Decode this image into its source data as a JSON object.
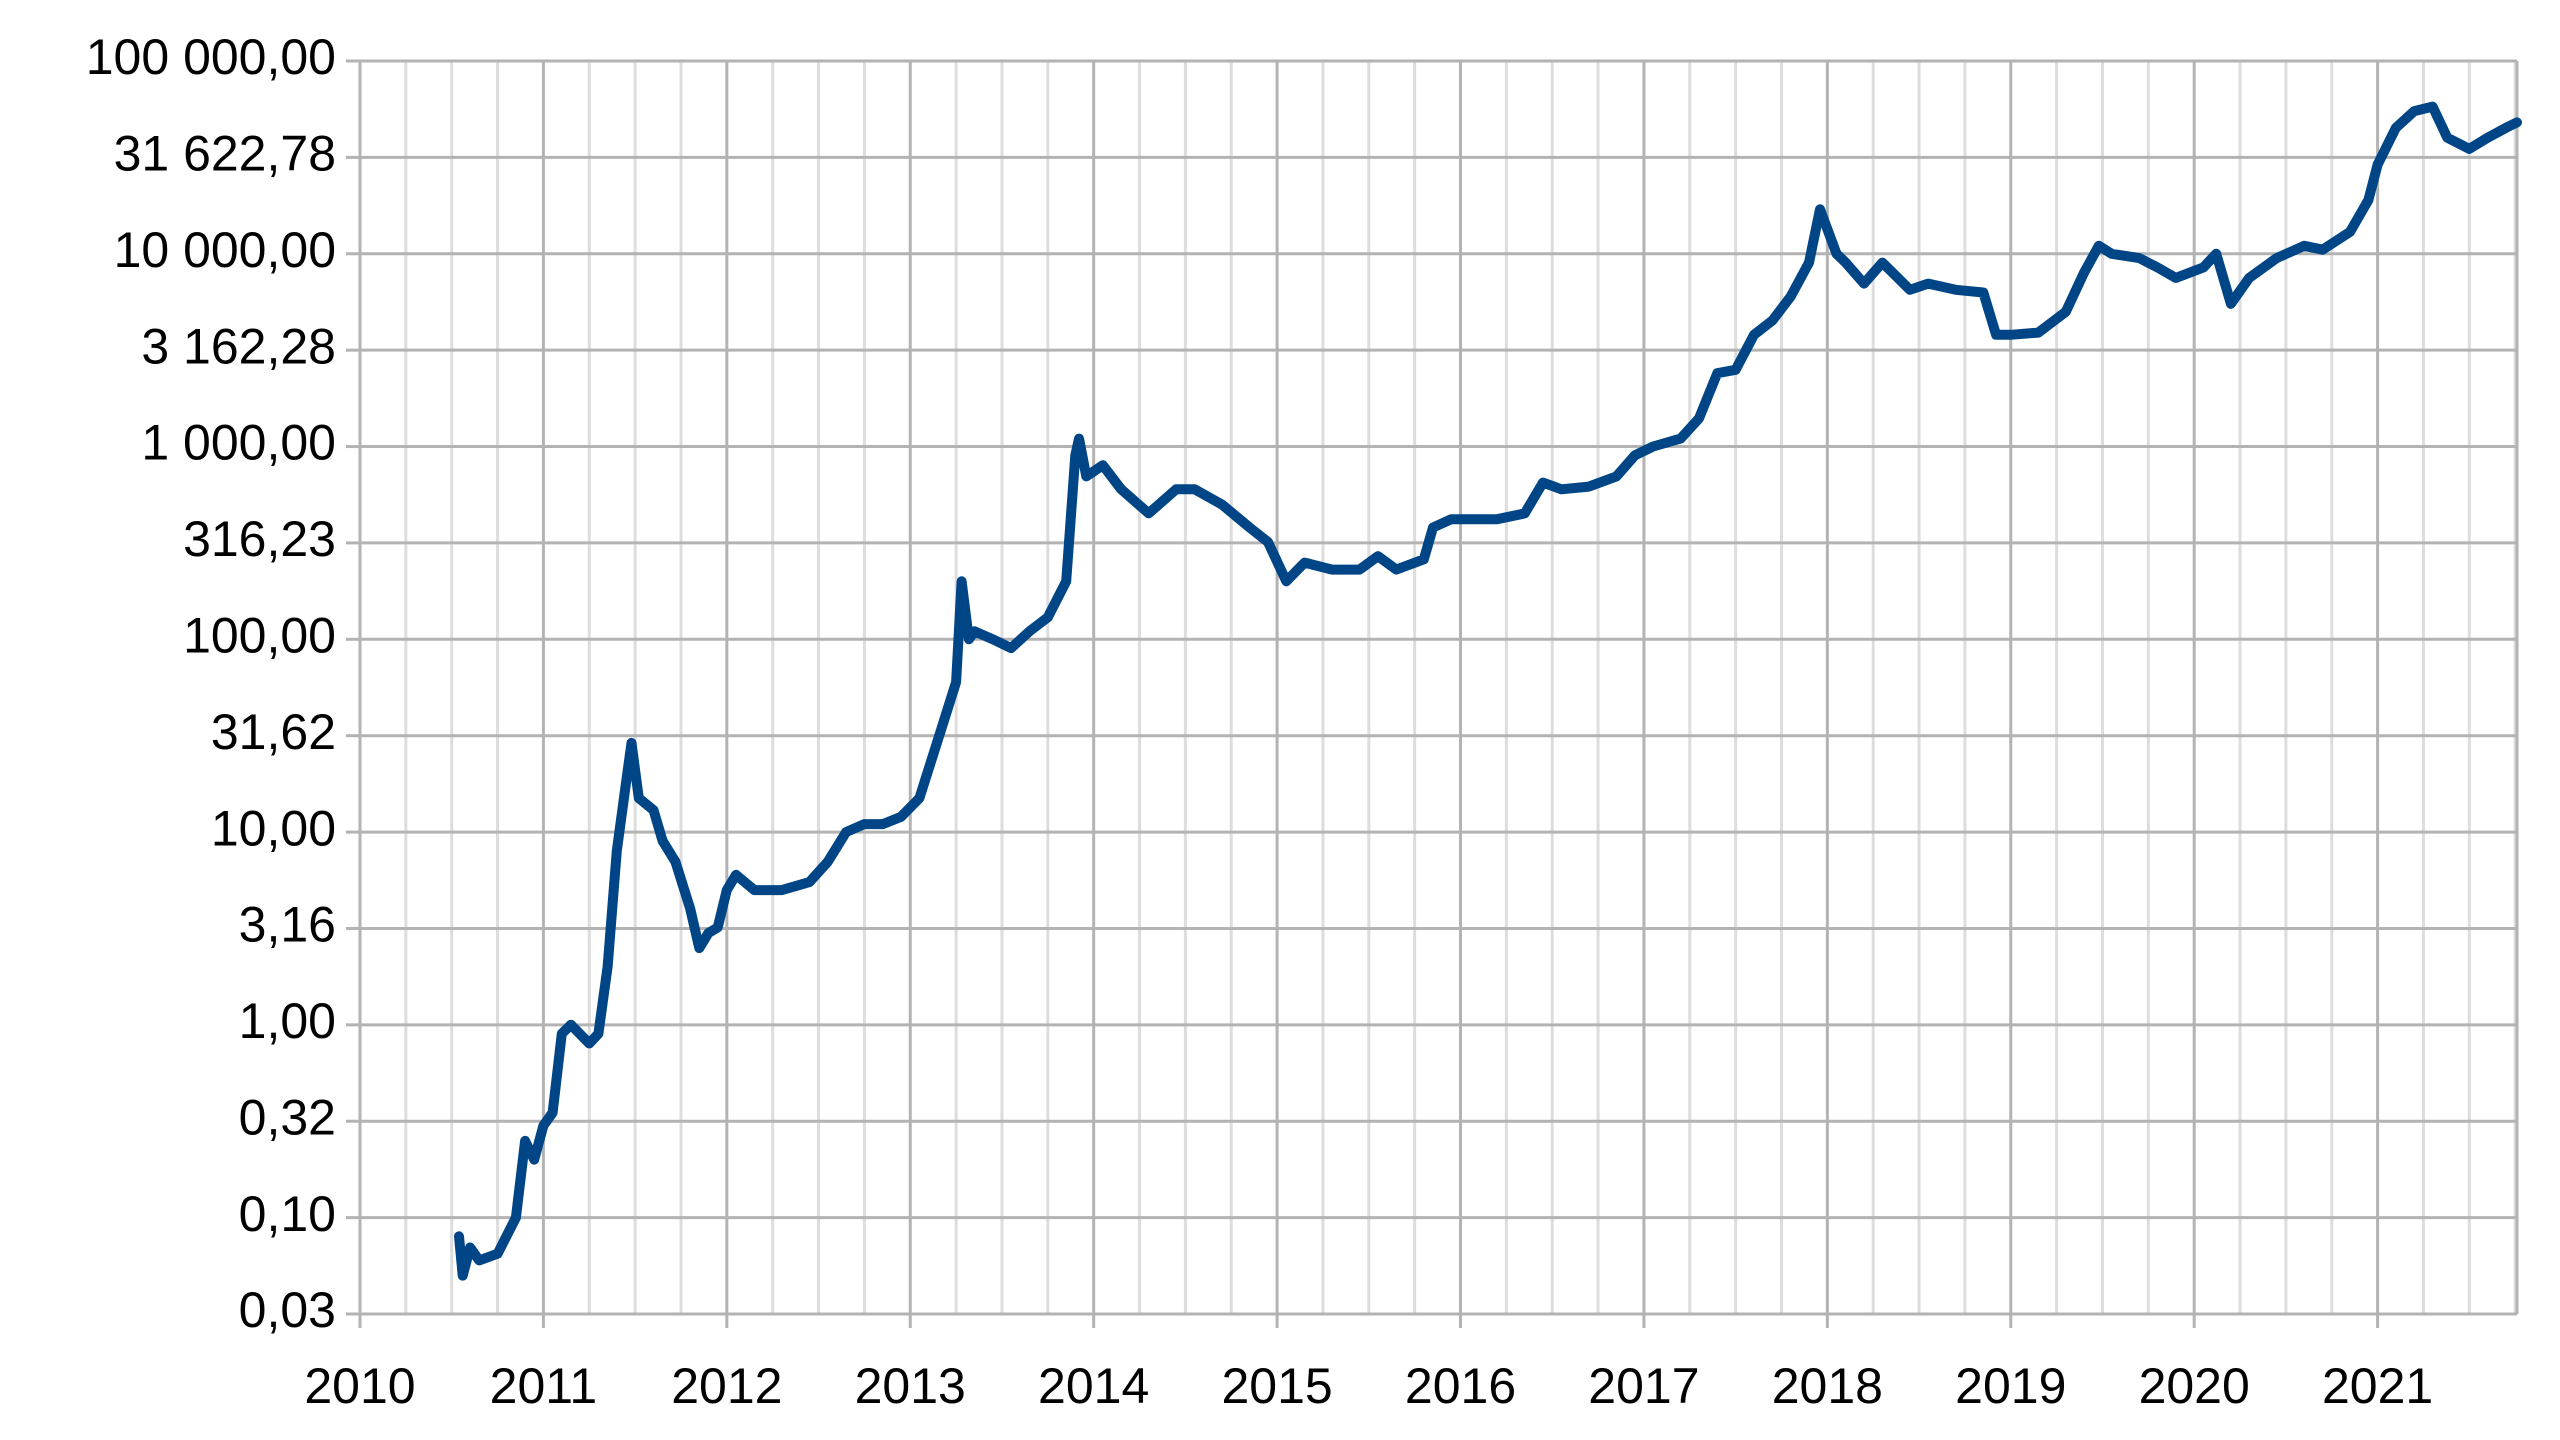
{
  "chart_data": {
    "type": "line",
    "log_scale_y": true,
    "grid": true,
    "xlim": [
      2010,
      2021.76
    ],
    "xticks": [
      2010,
      2011,
      2012,
      2013,
      2014,
      2015,
      2016,
      2017,
      2018,
      2019,
      2020,
      2021
    ],
    "xminorticks": [
      2010.25,
      2010.5,
      2010.75,
      2011.25,
      2011.5,
      2011.75,
      2012.25,
      2012.5,
      2012.75,
      2013.25,
      2013.5,
      2013.75,
      2014.25,
      2014.5,
      2014.75,
      2015.25,
      2015.5,
      2015.75,
      2016.25,
      2016.5,
      2016.75,
      2017.25,
      2017.5,
      2017.75,
      2018.25,
      2018.5,
      2018.75,
      2019.25,
      2019.5,
      2019.75,
      2020.25,
      2020.5,
      2020.75,
      2021.25,
      2021.5,
      2021.75
    ],
    "ylim": [
      0.0316228,
      100000
    ],
    "yticks": [
      {
        "value": 0.0316228,
        "label": "0,03"
      },
      {
        "value": 0.1,
        "label": "0,10"
      },
      {
        "value": 0.316228,
        "label": "0,32"
      },
      {
        "value": 1,
        "label": "1,00"
      },
      {
        "value": 3.16228,
        "label": "3,16"
      },
      {
        "value": 10,
        "label": "10,00"
      },
      {
        "value": 31.6228,
        "label": "31,62"
      },
      {
        "value": 100,
        "label": "100,00"
      },
      {
        "value": 316.228,
        "label": "316,23"
      },
      {
        "value": 1000,
        "label": "1 000,00"
      },
      {
        "value": 3162.28,
        "label": "3 162,28"
      },
      {
        "value": 10000,
        "label": "10 000,00"
      },
      {
        "value": 31622.78,
        "label": "31 622,78"
      },
      {
        "value": 100000,
        "label": "100 000,00"
      }
    ],
    "x": [
      2010.54,
      2010.56,
      2010.6,
      2010.65,
      2010.75,
      2010.85,
      2010.9,
      2010.95,
      2011.0,
      2011.05,
      2011.1,
      2011.15,
      2011.25,
      2011.3,
      2011.35,
      2011.4,
      2011.45,
      2011.48,
      2011.52,
      2011.6,
      2011.65,
      2011.72,
      2011.8,
      2011.85,
      2011.9,
      2011.95,
      2012.0,
      2012.05,
      2012.15,
      2012.3,
      2012.45,
      2012.55,
      2012.65,
      2012.75,
      2012.85,
      2012.95,
      2013.05,
      2013.15,
      2013.25,
      2013.28,
      2013.32,
      2013.35,
      2013.45,
      2013.55,
      2013.65,
      2013.75,
      2013.85,
      2013.9,
      2013.92,
      2013.96,
      2014.05,
      2014.15,
      2014.3,
      2014.45,
      2014.55,
      2014.7,
      2014.85,
      2014.95,
      2015.05,
      2015.15,
      2015.3,
      2015.45,
      2015.55,
      2015.65,
      2015.8,
      2015.85,
      2015.95,
      2016.05,
      2016.2,
      2016.35,
      2016.45,
      2016.55,
      2016.7,
      2016.85,
      2016.95,
      2017.05,
      2017.2,
      2017.3,
      2017.4,
      2017.5,
      2017.6,
      2017.7,
      2017.8,
      2017.9,
      2017.96,
      2018.05,
      2018.1,
      2018.2,
      2018.3,
      2018.45,
      2018.55,
      2018.7,
      2018.85,
      2018.92,
      2019.0,
      2019.15,
      2019.3,
      2019.4,
      2019.48,
      2019.55,
      2019.7,
      2019.8,
      2019.9,
      2020.05,
      2020.12,
      2020.2,
      2020.3,
      2020.45,
      2020.6,
      2020.7,
      2020.85,
      2020.95,
      2021.0,
      2021.1,
      2021.2,
      2021.3,
      2021.38,
      2021.5,
      2021.6,
      2021.7,
      2021.76
    ],
    "series": [
      {
        "color": "#004586",
        "values": [
          0.08,
          0.05,
          0.07,
          0.06,
          0.065,
          0.1,
          0.25,
          0.2,
          0.3,
          0.35,
          0.9,
          1.0,
          0.8,
          0.9,
          2,
          8,
          18,
          29,
          15,
          13,
          9,
          7,
          4,
          2.5,
          3,
          3.2,
          5,
          6,
          5,
          5,
          5.5,
          7,
          10,
          11,
          11,
          12,
          15,
          30,
          60,
          200,
          100,
          110,
          100,
          90,
          110,
          130,
          200,
          900,
          1100,
          700,
          800,
          600,
          450,
          600,
          600,
          500,
          380,
          320,
          200,
          250,
          230,
          230,
          270,
          230,
          260,
          380,
          420,
          420,
          420,
          450,
          650,
          600,
          620,
          700,
          900,
          1000,
          1100,
          1400,
          2400,
          2500,
          3800,
          4500,
          6000,
          9000,
          17000,
          10000,
          9000,
          7000,
          9000,
          6500,
          7000,
          6500,
          6300,
          3800,
          3800,
          3900,
          5000,
          8000,
          11000,
          10000,
          9500,
          8500,
          7500,
          8500,
          10000,
          5500,
          7500,
          9500,
          11000,
          10500,
          13000,
          19000,
          29000,
          45000,
          55000,
          58000,
          40000,
          35000,
          40000,
          45000,
          48000
        ]
      }
    ]
  }
}
